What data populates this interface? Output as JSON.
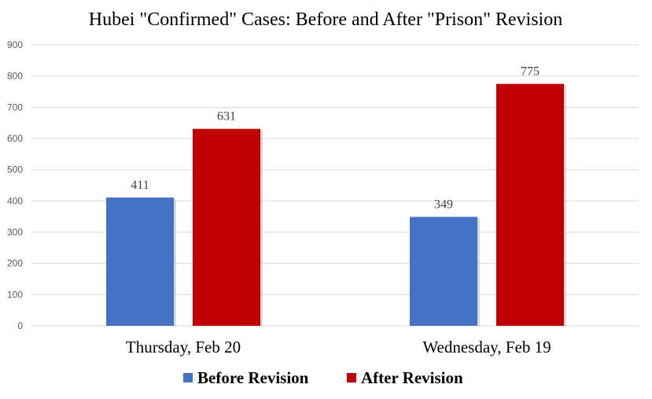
{
  "chart_data": {
    "type": "bar",
    "title": "Hubei \"Confirmed\" Cases: Before and After \"Prison\" Revision",
    "xlabel": "",
    "ylabel": "",
    "categories": [
      "Thursday, Feb 20",
      "Wednesday, Feb 19"
    ],
    "series": [
      {
        "name": "Before Revision",
        "color": "#4472c4",
        "values": [
          411,
          349
        ]
      },
      {
        "name": "After Revision",
        "color": "#c00000",
        "values": [
          631,
          775
        ]
      }
    ],
    "ylim": [
      0,
      900
    ],
    "yticks": [
      0,
      100,
      200,
      300,
      400,
      500,
      600,
      700,
      800,
      900
    ],
    "grid": true,
    "data_labels": true,
    "legend_position": "bottom"
  }
}
